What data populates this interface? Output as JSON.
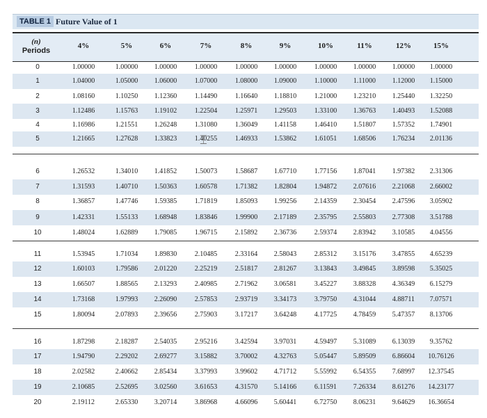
{
  "header": {
    "tag": "TABLE 1",
    "title": "Future Value of 1"
  },
  "columns": {
    "n_symbol": "(n)",
    "periods_label": "Periods",
    "rates": [
      "4%",
      "5%",
      "6%",
      "7%",
      "8%",
      "9%",
      "10%",
      "11%",
      "12%",
      "15%"
    ]
  },
  "groups": [
    {
      "rows": [
        {
          "n": "0",
          "values": [
            "1.00000",
            "1.00000",
            "1.00000",
            "1.00000",
            "1.00000",
            "1.00000",
            "1.00000",
            "1.00000",
            "1.00000",
            "1.00000"
          ]
        },
        {
          "n": "1",
          "values": [
            "1.04000",
            "1.05000",
            "1.06000",
            "1.07000",
            "1.08000",
            "1.09000",
            "1.10000",
            "1.11000",
            "1.12000",
            "1.15000"
          ]
        },
        {
          "n": "2",
          "values": [
            "1.08160",
            "1.10250",
            "1.12360",
            "1.14490",
            "1.16640",
            "1.18810",
            "1.21000",
            "1.23210",
            "1.25440",
            "1.32250"
          ]
        },
        {
          "n": "3",
          "values": [
            "1.12486",
            "1.15763",
            "1.19102",
            "1.22504",
            "1.25971",
            "1.29503",
            "1.33100",
            "1.36763",
            "1.40493",
            "1.52088"
          ]
        },
        {
          "n": "4",
          "values": [
            "1.16986",
            "1.21551",
            "1.26248",
            "1.31080",
            "1.36049",
            "1.41158",
            "1.46410",
            "1.51807",
            "1.57352",
            "1.74901"
          ]
        },
        {
          "n": "5",
          "values": [
            "1.21665",
            "1.27628",
            "1.33823",
            "1.40255",
            "1.46933",
            "1.53862",
            "1.61051",
            "1.68506",
            "1.76234",
            "2.01136"
          ]
        }
      ]
    },
    {
      "rows": [
        {
          "n": "6",
          "values": [
            "1.26532",
            "1.34010",
            "1.41852",
            "1.50073",
            "1.58687",
            "1.67710",
            "1.77156",
            "1.87041",
            "1.97382",
            "2.31306"
          ]
        },
        {
          "n": "7",
          "values": [
            "1.31593",
            "1.40710",
            "1.50363",
            "1.60578",
            "1.71382",
            "1.82804",
            "1.94872",
            "2.07616",
            "2.21068",
            "2.66002"
          ]
        },
        {
          "n": "8",
          "values": [
            "1.36857",
            "1.47746",
            "1.59385",
            "1.71819",
            "1.85093",
            "1.99256",
            "2.14359",
            "2.30454",
            "2.47596",
            "3.05902"
          ]
        },
        {
          "n": "9",
          "values": [
            "1.42331",
            "1.55133",
            "1.68948",
            "1.83846",
            "1.99900",
            "2.17189",
            "2.35795",
            "2.55803",
            "2.77308",
            "3.51788"
          ]
        },
        {
          "n": "10",
          "values": [
            "1.48024",
            "1.62889",
            "1.79085",
            "1.96715",
            "2.15892",
            "2.36736",
            "2.59374",
            "2.83942",
            "3.10585",
            "4.04556"
          ]
        }
      ]
    },
    {
      "rows": [
        {
          "n": "11",
          "values": [
            "1.53945",
            "1.71034",
            "1.89830",
            "2.10485",
            "2.33164",
            "2.58043",
            "2.85312",
            "3.15176",
            "3.47855",
            "4.65239"
          ]
        },
        {
          "n": "12",
          "values": [
            "1.60103",
            "1.79586",
            "2.01220",
            "2.25219",
            "2.51817",
            "2.81267",
            "3.13843",
            "3.49845",
            "3.89598",
            "5.35025"
          ]
        },
        {
          "n": "13",
          "values": [
            "1.66507",
            "1.88565",
            "2.13293",
            "2.40985",
            "2.71962",
            "3.06581",
            "3.45227",
            "3.88328",
            "4.36349",
            "6.15279"
          ]
        },
        {
          "n": "14",
          "values": [
            "1.73168",
            "1.97993",
            "2.26090",
            "2.57853",
            "2.93719",
            "3.34173",
            "3.79750",
            "4.31044",
            "4.88711",
            "7.07571"
          ]
        },
        {
          "n": "15",
          "values": [
            "1.80094",
            "2.07893",
            "2.39656",
            "2.75903",
            "3.17217",
            "3.64248",
            "4.17725",
            "4.78459",
            "5.47357",
            "8.13706"
          ]
        }
      ]
    },
    {
      "rows": [
        {
          "n": "16",
          "values": [
            "1.87298",
            "2.18287",
            "2.54035",
            "2.95216",
            "3.42594",
            "3.97031",
            "4.59497",
            "5.31089",
            "6.13039",
            "9.35762"
          ]
        },
        {
          "n": "17",
          "values": [
            "1.94790",
            "2.29202",
            "2.69277",
            "3.15882",
            "3.70002",
            "4.32763",
            "5.05447",
            "5.89509",
            "6.86604",
            "10.76126"
          ]
        },
        {
          "n": "18",
          "values": [
            "2.02582",
            "2.40662",
            "2.85434",
            "3.37993",
            "3.99602",
            "4.71712",
            "5.55992",
            "6.54355",
            "7.68997",
            "12.37545"
          ]
        },
        {
          "n": "19",
          "values": [
            "2.10685",
            "2.52695",
            "3.02560",
            "3.61653",
            "4.31570",
            "5.14166",
            "6.11591",
            "7.26334",
            "8.61276",
            "14.23177"
          ]
        },
        {
          "n": "20",
          "values": [
            "2.19112",
            "2.65330",
            "3.20714",
            "3.86968",
            "4.66096",
            "5.60441",
            "6.72750",
            "8.06231",
            "9.64629",
            "16.36654"
          ]
        }
      ]
    }
  ]
}
